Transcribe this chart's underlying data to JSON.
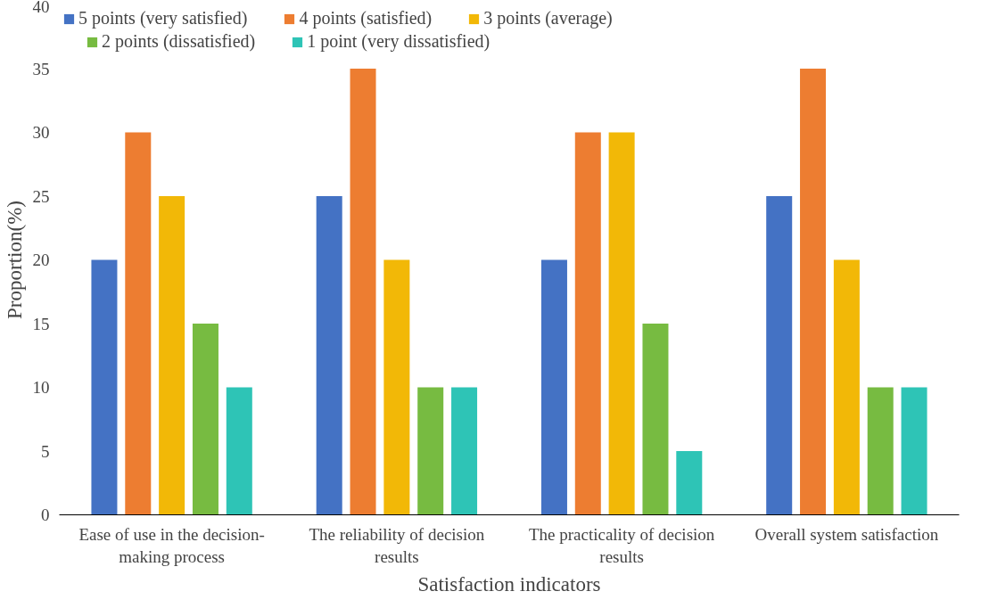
{
  "chart_data": {
    "type": "bar",
    "xlabel": "Satisfaction indicators",
    "ylabel": "Proportion(%)",
    "categories": [
      "Ease of use in the decision-making process",
      "The reliability of decision results",
      "The practicality of decision results",
      "Overall system satisfaction"
    ],
    "series": [
      {
        "name": "5 points (very satisfied)",
        "color": "#4472c4",
        "values": [
          20,
          25,
          20,
          25
        ]
      },
      {
        "name": "4 points (satisfied)",
        "color": "#ed7d31",
        "values": [
          30,
          35,
          30,
          35
        ]
      },
      {
        "name": "3 points (average)",
        "color": "#f2b807",
        "values": [
          25,
          20,
          30,
          20
        ]
      },
      {
        "name": "2 points (dissatisfied)",
        "color": "#77bb41",
        "values": [
          15,
          10,
          15,
          10
        ]
      },
      {
        "name": "1 point (very dissatisfied)",
        "color": "#2ec4b6",
        "values": [
          10,
          10,
          5,
          10
        ]
      }
    ],
    "ylim": [
      0,
      40
    ],
    "yticks": [
      0,
      5,
      10,
      15,
      20,
      25,
      30,
      35,
      40
    ],
    "grid": false,
    "legend": "top"
  }
}
